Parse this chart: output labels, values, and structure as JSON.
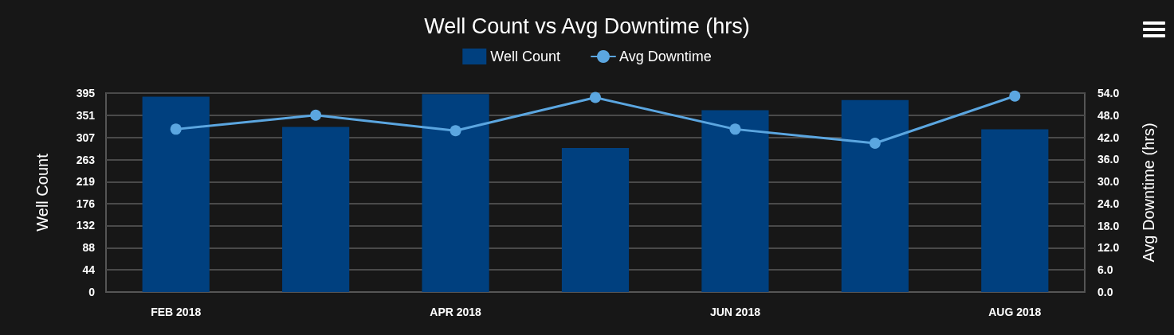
{
  "chart_data": {
    "type": "bar",
    "title": "Well Count vs Avg Downtime (hrs)",
    "ylabel": "Well Count",
    "y2label": "Avg Downtime (hrs)",
    "categories": [
      "FEB 2018",
      null,
      "APR 2018",
      null,
      "JUN 2018",
      null,
      "AUG 2018"
    ],
    "series": [
      {
        "name": "Well Count",
        "color": "#00407f",
        "values": [
          388,
          328,
          393,
          286,
          361,
          381,
          323
        ]
      },
      {
        "name": "Avg Downtime",
        "type": "line",
        "axis": "y2",
        "color": "#5ba6e0",
        "values": [
          44.2,
          48.0,
          43.8,
          52.8,
          44.2,
          40.4,
          53.2
        ]
      }
    ],
    "ylim": [
      0,
      395
    ],
    "yticks": [
      0,
      44,
      88,
      132,
      176,
      219,
      263,
      307,
      351,
      395
    ],
    "y2lim": [
      0,
      54
    ],
    "y2ticks": [
      {
        "value": 0,
        "label": "0.0"
      },
      {
        "value": 6,
        "label": "6.0"
      },
      {
        "value": 12,
        "label": "12.0"
      },
      {
        "value": 18,
        "label": "18.0"
      },
      {
        "value": 24,
        "label": "24.0"
      },
      {
        "value": 30,
        "label": "30.0"
      },
      {
        "value": 36,
        "label": "36.0"
      },
      {
        "value": 42,
        "label": "42.0"
      },
      {
        "value": 48,
        "label": "48.0"
      },
      {
        "value": 54,
        "label": "54.0"
      }
    ],
    "grid": "y",
    "legend": "top",
    "marker": "circle",
    "line_style": "solid"
  }
}
